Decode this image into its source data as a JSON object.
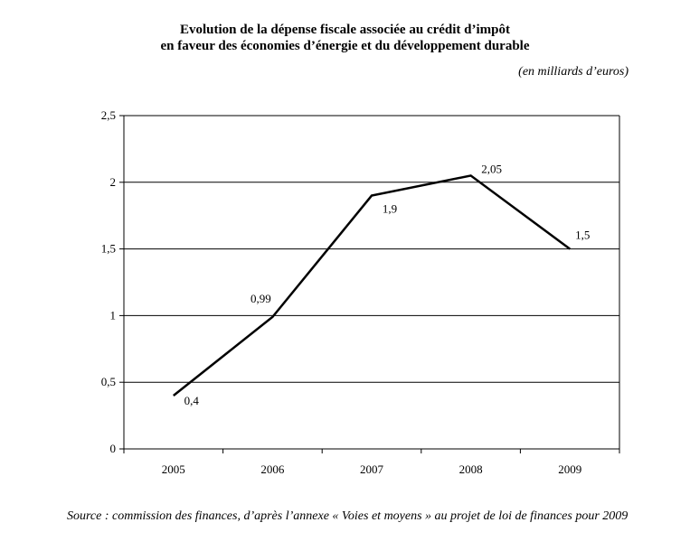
{
  "title_line1": "Evolution de la dépense fiscale associée au crédit d’impôt",
  "title_line2": "en faveur des économies d’énergie et du développement durable",
  "unit_note": "(en milliards d’euros)",
  "source_note": "Source : commission des finances, d’après l’annexe « Voies et moyens » au projet de loi de finances pour 2009",
  "chart_data": {
    "type": "line",
    "title": "",
    "xlabel": "",
    "ylabel": "",
    "categories": [
      "2005",
      "2006",
      "2007",
      "2008",
      "2009"
    ],
    "series": [
      {
        "values": [
          0.4,
          0.99,
          1.9,
          2.05,
          1.5
        ],
        "data_labels": [
          "0,4",
          "0,99",
          "1,9",
          "2,05",
          "1,5"
        ]
      }
    ],
    "ylim": [
      0,
      2.5
    ],
    "yticks": [
      0,
      0.5,
      1,
      1.5,
      2,
      2.5
    ],
    "ytick_labels": [
      "0",
      "0,5",
      "1",
      "1,5",
      "2",
      "2,5"
    ],
    "grid": "horizontal",
    "legend": "none",
    "line_color": "#000000"
  }
}
